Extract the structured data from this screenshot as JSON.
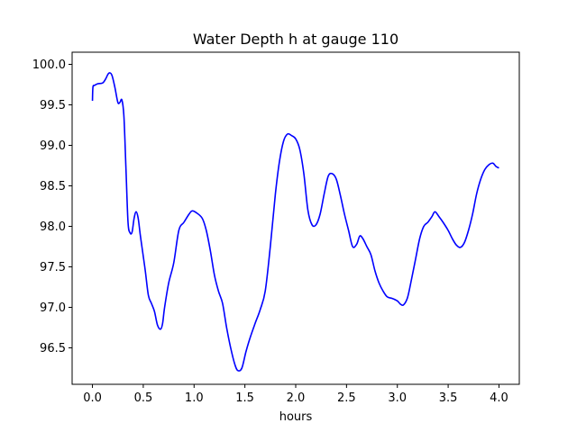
{
  "chart_data": {
    "type": "line",
    "title": "Water Depth h at gauge 110",
    "xlabel": "hours",
    "ylabel": "",
    "xlim": [
      -0.2,
      4.2
    ],
    "ylim": [
      96.05,
      100.15
    ],
    "x_ticks": [
      0.0,
      0.5,
      1.0,
      1.5,
      2.0,
      2.5,
      3.0,
      3.5,
      4.0
    ],
    "x_tick_labels": [
      "0.0",
      "0.5",
      "1.0",
      "1.5",
      "2.0",
      "2.5",
      "3.0",
      "3.5",
      "4.0"
    ],
    "y_ticks": [
      96.5,
      97.0,
      97.5,
      98.0,
      98.5,
      99.0,
      99.5,
      100.0
    ],
    "y_tick_labels": [
      "96.5",
      "97.0",
      "97.5",
      "98.0",
      "98.5",
      "99.0",
      "99.5",
      "100.0"
    ],
    "grid": false,
    "legend": "none",
    "series": [
      {
        "color": "#0000ff",
        "x": [
          0.0,
          0.005,
          0.02,
          0.05,
          0.1,
          0.13,
          0.16,
          0.19,
          0.22,
          0.25,
          0.27,
          0.29,
          0.31,
          0.33,
          0.35,
          0.37,
          0.39,
          0.41,
          0.43,
          0.45,
          0.47,
          0.49,
          0.52,
          0.55,
          0.58,
          0.61,
          0.64,
          0.67,
          0.69,
          0.71,
          0.75,
          0.8,
          0.85,
          0.9,
          0.95,
          0.98,
          1.02,
          1.08,
          1.12,
          1.16,
          1.2,
          1.24,
          1.28,
          1.32,
          1.36,
          1.4,
          1.43,
          1.47,
          1.51,
          1.55,
          1.6,
          1.65,
          1.7,
          1.75,
          1.8,
          1.84,
          1.88,
          1.92,
          1.96,
          2.0,
          2.04,
          2.08,
          2.12,
          2.16,
          2.2,
          2.24,
          2.28,
          2.32,
          2.36,
          2.4,
          2.44,
          2.48,
          2.52,
          2.56,
          2.6,
          2.63,
          2.66,
          2.7,
          2.74,
          2.78,
          2.82,
          2.86,
          2.9,
          2.95,
          3.0,
          3.03,
          3.06,
          3.1,
          3.14,
          3.18,
          3.22,
          3.26,
          3.3,
          3.34,
          3.37,
          3.41,
          3.45,
          3.5,
          3.54,
          3.58,
          3.62,
          3.66,
          3.7,
          3.74,
          3.78,
          3.82,
          3.86,
          3.9,
          3.94,
          3.97,
          4.0
        ],
        "y": [
          99.55,
          99.72,
          99.74,
          99.76,
          99.77,
          99.82,
          99.89,
          99.87,
          99.72,
          99.53,
          99.53,
          99.56,
          99.35,
          98.7,
          98.05,
          97.92,
          97.93,
          98.1,
          98.18,
          98.1,
          97.9,
          97.72,
          97.45,
          97.15,
          97.05,
          96.95,
          96.78,
          96.73,
          96.8,
          97.0,
          97.3,
          97.55,
          97.95,
          98.05,
          98.15,
          98.19,
          98.17,
          98.1,
          97.95,
          97.7,
          97.4,
          97.2,
          97.05,
          96.75,
          96.5,
          96.3,
          96.22,
          96.25,
          96.45,
          96.62,
          96.8,
          96.97,
          97.2,
          97.75,
          98.4,
          98.8,
          99.05,
          99.14,
          99.12,
          99.08,
          98.95,
          98.65,
          98.2,
          98.02,
          98.02,
          98.15,
          98.4,
          98.62,
          98.65,
          98.58,
          98.38,
          98.15,
          97.95,
          97.75,
          97.78,
          97.88,
          97.85,
          97.75,
          97.65,
          97.45,
          97.3,
          97.2,
          97.13,
          97.11,
          97.08,
          97.04,
          97.03,
          97.12,
          97.35,
          97.6,
          97.85,
          98.0,
          98.05,
          98.12,
          98.18,
          98.12,
          98.05,
          97.95,
          97.85,
          97.77,
          97.74,
          97.8,
          97.95,
          98.15,
          98.4,
          98.58,
          98.7,
          98.76,
          98.78,
          98.74,
          98.72
        ]
      }
    ]
  }
}
